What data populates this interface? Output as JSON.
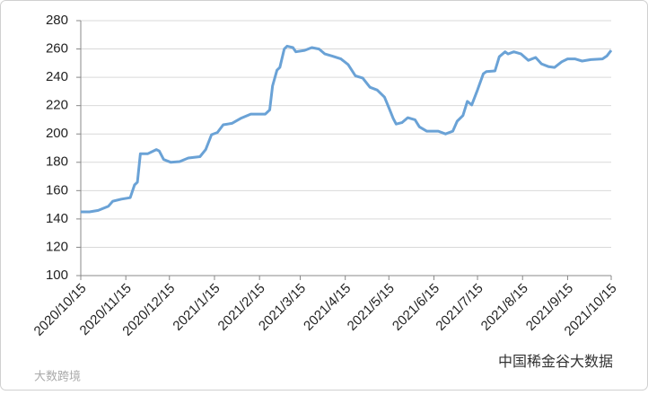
{
  "chart_data": {
    "type": "line",
    "color": "#6aa2d6",
    "grid": true,
    "x": [
      "2020/10/15",
      "2020/10/21",
      "2020/10/27",
      "2020/11/3",
      "2020/11/6",
      "2020/11/12",
      "2020/11/18",
      "2020/11/21",
      "2020/11/23",
      "2020/11/25",
      "2020/11/30",
      "2020/12/6",
      "2020/12/8",
      "2020/12/11",
      "2020/12/16",
      "2020/12/22",
      "2020/12/28",
      "2021/1/5",
      "2021/1/9",
      "2021/1/13",
      "2021/1/17",
      "2021/1/21",
      "2021/1/27",
      "2021/2/2",
      "2021/2/9",
      "2021/2/19",
      "2021/2/22",
      "2021/2/24",
      "2021/2/27",
      "2021/3/1",
      "2021/3/4",
      "2021/3/6",
      "2021/3/10",
      "2021/3/12",
      "2021/3/18",
      "2021/3/23",
      "2021/3/28",
      "2021/4/1",
      "2021/4/6",
      "2021/4/12",
      "2021/4/17",
      "2021/4/22",
      "2021/4/27",
      "2021/5/2",
      "2021/5/7",
      "2021/5/12",
      "2021/5/15",
      "2021/5/18",
      "2021/5/20",
      "2021/5/24",
      "2021/5/28",
      "2021/6/2",
      "2021/6/5",
      "2021/6/10",
      "2021/6/18",
      "2021/6/23",
      "2021/6/28",
      "2021/7/1",
      "2021/7/5",
      "2021/7/8",
      "2021/7/11",
      "2021/7/15",
      "2021/7/19",
      "2021/7/21",
      "2021/7/27",
      "2021/7/30",
      "2021/8/3",
      "2021/8/5",
      "2021/8/9",
      "2021/8/14",
      "2021/8/19",
      "2021/8/24",
      "2021/8/28",
      "2021/9/2",
      "2021/9/6",
      "2021/9/11",
      "2021/9/15",
      "2021/9/20",
      "2021/9/25",
      "2021/10/1",
      "2021/10/9",
      "2021/10/12",
      "2021/10/15"
    ],
    "values": [
      145,
      145,
      146,
      149,
      152.5,
      154,
      155,
      164,
      166,
      186,
      186,
      189,
      188,
      182,
      180,
      180.5,
      183,
      184,
      189,
      199.5,
      201,
      206.5,
      207.5,
      211,
      214,
      214,
      217,
      234,
      245,
      247,
      260,
      262,
      261,
      258,
      259,
      261,
      260,
      256.5,
      255,
      253,
      249,
      241,
      239.5,
      233,
      231,
      226,
      218.5,
      211,
      207,
      208,
      211.5,
      210,
      205,
      202,
      202,
      200,
      202,
      209,
      213,
      223,
      220.5,
      231,
      242.5,
      244,
      244.5,
      254.5,
      258,
      256.5,
      258,
      256.5,
      252,
      254,
      249.5,
      247.5,
      247,
      251,
      253,
      253,
      251.5,
      252.5,
      253,
      255,
      259
    ],
    "xlim": [
      "2020/10/15",
      "2021/10/15"
    ],
    "xticks": [
      "2020/10/15",
      "2020/11/15",
      "2020/12/15",
      "2021/1/15",
      "2021/2/15",
      "2021/3/15",
      "2021/4/15",
      "2021/5/15",
      "2021/6/15",
      "2021/7/15",
      "2021/8/15",
      "2021/9/15",
      "2021/10/15"
    ],
    "ylim": [
      100,
      280
    ],
    "yticks": [
      100,
      120,
      140,
      160,
      180,
      200,
      220,
      240,
      260,
      280
    ]
  },
  "watermarks": [
    "大数跨境",
    "中国稀金谷大数据"
  ]
}
